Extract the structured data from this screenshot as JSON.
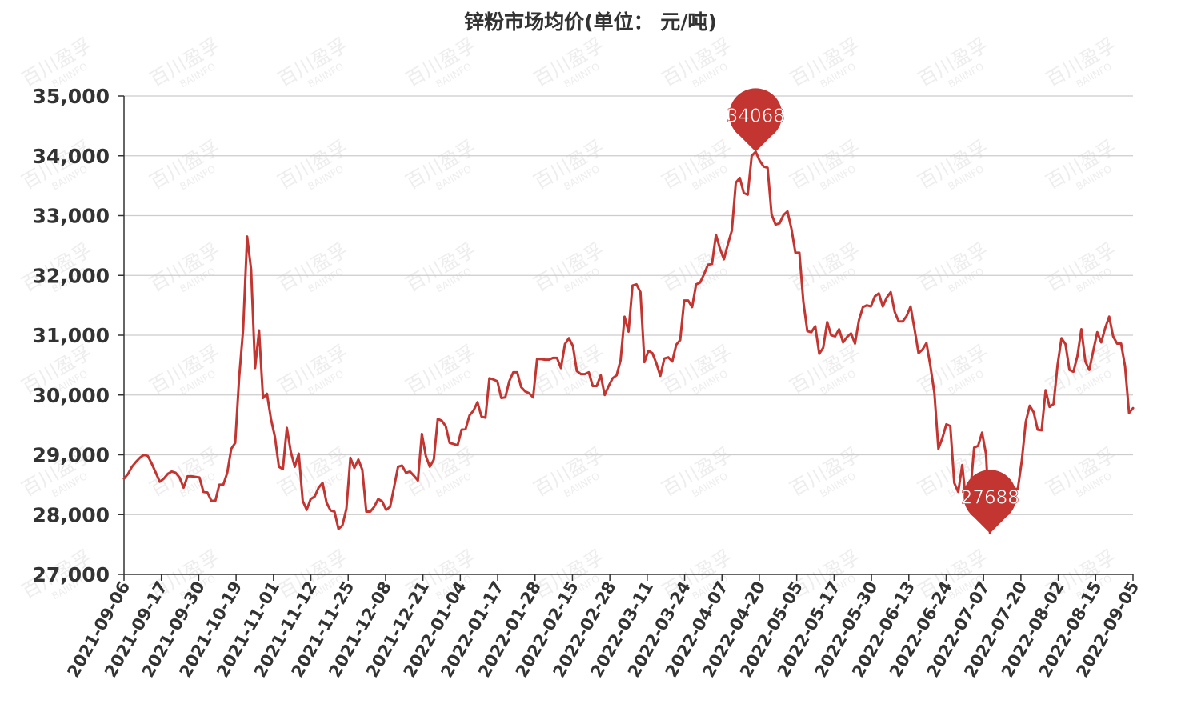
{
  "chart_data": {
    "type": "line",
    "title": "锌粉市场均价(单位： 元/吨)",
    "xlabel": "",
    "ylabel": "",
    "ylim": [
      27000,
      35000
    ],
    "yticks": [
      "27,000",
      "28,000",
      "29,000",
      "30,000",
      "31,000",
      "32,000",
      "33,000",
      "34,000",
      "35,000"
    ],
    "x_tick_labels": [
      "2021-09-06",
      "2021-09-17",
      "2021-09-30",
      "2021-10-19",
      "2021-11-01",
      "2021-11-12",
      "2021-11-25",
      "2021-12-08",
      "2021-12-21",
      "2022-01-04",
      "2022-01-17",
      "2022-01-28",
      "2022-02-15",
      "2022-02-28",
      "2022-03-11",
      "2022-03-24",
      "2022-04-07",
      "2022-04-20",
      "2022-05-05",
      "2022-05-17",
      "2022-05-30",
      "2022-06-13",
      "2022-06-24",
      "2022-07-07",
      "2022-07-20",
      "2022-08-02",
      "2022-08-15",
      "2022-09-05"
    ],
    "grid": true,
    "line_color": "#c23531",
    "series": [
      {
        "values": [
          28600,
          28680,
          28800,
          28880,
          28950,
          29000,
          28980,
          28850,
          28700,
          28550,
          28600,
          28680,
          28720,
          28700,
          28620,
          28450,
          28640,
          28640,
          28630,
          28620,
          28380,
          28370,
          28230,
          28230,
          28500,
          28500,
          28700,
          29100,
          29200,
          30300,
          31100,
          32650,
          32100,
          30450,
          31080,
          29950,
          30020,
          29600,
          29300,
          28800,
          28760,
          29450,
          29050,
          28800,
          29020,
          28230,
          28080,
          28260,
          28300,
          28450,
          28530,
          28200,
          28070,
          28050,
          27760,
          27820,
          28100,
          28950,
          28780,
          28920,
          28750,
          28050,
          28050,
          28130,
          28260,
          28220,
          28080,
          28130,
          28460,
          28800,
          28820,
          28700,
          28720,
          28650,
          28570,
          29350,
          28980,
          28800,
          28920,
          29600,
          29570,
          29480,
          29200,
          29180,
          29160,
          29420,
          29430,
          29660,
          29740,
          29880,
          29640,
          29620,
          30280,
          30260,
          30230,
          29950,
          29960,
          30230,
          30380,
          30380,
          30130,
          30060,
          30030,
          29960,
          30600,
          30600,
          30590,
          30590,
          30620,
          30620,
          30450,
          30850,
          30950,
          30820,
          30400,
          30350,
          30350,
          30380,
          30150,
          30150,
          30330,
          30000,
          30150,
          30280,
          30330,
          30580,
          31310,
          31060,
          31830,
          31850,
          31720,
          30550,
          30740,
          30700,
          30530,
          30320,
          30610,
          30630,
          30560,
          30840,
          30920,
          31580,
          31580,
          31470,
          31850,
          31880,
          32020,
          32180,
          32190,
          32680,
          32450,
          32270,
          32520,
          32750,
          33550,
          33630,
          33380,
          33350,
          34000,
          34068,
          33920,
          33820,
          33800,
          33020,
          32850,
          32870,
          33010,
          33070,
          32780,
          32380,
          32380,
          31560,
          31070,
          31050,
          31150,
          30690,
          30790,
          31220,
          31000,
          30980,
          31100,
          30880,
          30970,
          31030,
          30860,
          31250,
          31470,
          31500,
          31480,
          31650,
          31700,
          31480,
          31630,
          31720,
          31390,
          31230,
          31230,
          31320,
          31480,
          31100,
          30700,
          30760,
          30870,
          30480,
          30030,
          29100,
          29280,
          29510,
          29480,
          28530,
          28380,
          28830,
          28180,
          28350,
          29120,
          29150,
          29370,
          29010,
          27688,
          28100,
          28230,
          28530,
          28550,
          28570,
          28430,
          28430,
          28900,
          29550,
          29820,
          29710,
          29420,
          29410,
          30080,
          29800,
          29850,
          30500,
          30950,
          30850,
          30420,
          30390,
          30650,
          31100,
          30560,
          30420,
          30740,
          31050,
          30880,
          31120,
          31310,
          30980,
          30860,
          30860,
          30480,
          29700,
          29780
        ]
      }
    ],
    "markers": [
      {
        "label": "34068",
        "value": 34068,
        "type": "max"
      },
      {
        "label": "27688",
        "value": 27688,
        "type": "min"
      }
    ],
    "watermark": {
      "line1": "百川盈孚",
      "line2": "BAIINFO"
    }
  }
}
